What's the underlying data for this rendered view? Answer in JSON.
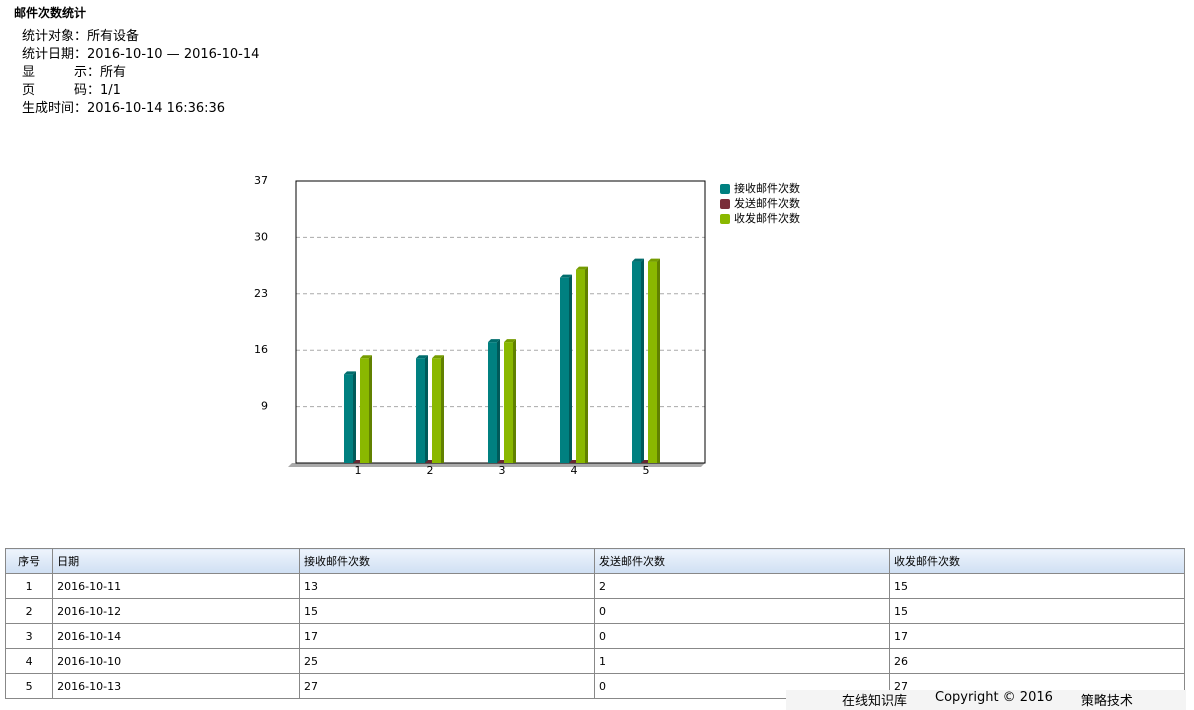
{
  "header": {
    "title": "邮件次数统计",
    "info": [
      "统计对象：所有设备",
      "统计日期：2016-10-10 — 2016-10-14",
      "显　　　示：所有",
      "页　　　码：1/1",
      "生成时间：2016-10-14 16:36:36"
    ]
  },
  "chart_data": {
    "type": "bar",
    "categories": [
      "1",
      "2",
      "3",
      "4",
      "5"
    ],
    "series": [
      {
        "name": "接收邮件次数",
        "color": "#008080",
        "values": [
          13,
          15,
          17,
          25,
          27
        ]
      },
      {
        "name": "发送邮件次数",
        "color": "#7a2e3a",
        "values": [
          2,
          0,
          0,
          1,
          0
        ]
      },
      {
        "name": "收发邮件次数",
        "color": "#8ab800",
        "values": [
          15,
          15,
          17,
          26,
          27
        ]
      }
    ],
    "ylim": [
      2,
      37
    ],
    "yticks": [
      9,
      16,
      23,
      30,
      37
    ],
    "grid": true
  },
  "table": {
    "columns": [
      "序号",
      "日期",
      "接收邮件次数",
      "发送邮件次数",
      "收发邮件次数"
    ],
    "rows": [
      [
        "1",
        "2016-10-11",
        "13",
        "2",
        "15"
      ],
      [
        "2",
        "2016-10-12",
        "15",
        "0",
        "15"
      ],
      [
        "3",
        "2016-10-14",
        "17",
        "0",
        "17"
      ],
      [
        "4",
        "2016-10-10",
        "25",
        "1",
        "26"
      ],
      [
        "5",
        "2016-10-13",
        "27",
        "0",
        "27"
      ]
    ]
  },
  "footer": [
    "在线知识库",
    "Copyright © 2016",
    "策略技术"
  ]
}
